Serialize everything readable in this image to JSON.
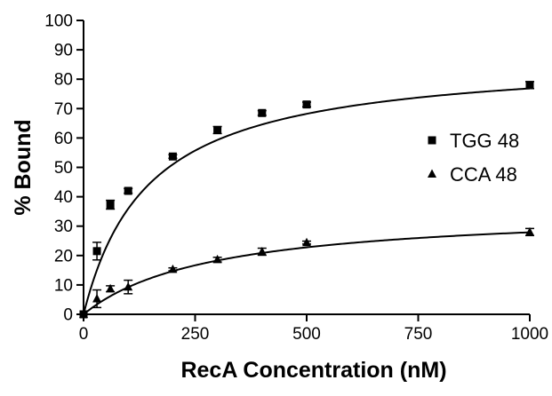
{
  "chart_data": {
    "type": "scatter",
    "title": "",
    "xlabel": "RecA Concentration (nM)",
    "ylabel": "% Bound",
    "xlim": [
      0,
      1000
    ],
    "ylim": [
      0,
      100
    ],
    "xticks": [
      "0",
      "250",
      "500",
      "750",
      "1000"
    ],
    "yticks": [
      "0",
      "10",
      "20",
      "30",
      "40",
      "50",
      "60",
      "70",
      "80",
      "90",
      "100"
    ],
    "legend_position": "right",
    "grid": false,
    "series": [
      {
        "name": "TGG 48",
        "marker": "square",
        "x": [
          0,
          30,
          60,
          100,
          200,
          300,
          400,
          500,
          1000
        ],
        "y": [
          0,
          21.5,
          37.3,
          42,
          53.7,
          62.7,
          68.5,
          71.4,
          78
        ],
        "err": [
          0,
          3,
          1.5,
          0.8,
          0.6,
          1.2,
          0.8,
          0.8,
          1.2
        ],
        "fit": {
          "bmax": 88,
          "kd": 145
        }
      },
      {
        "name": "CCA 48",
        "marker": "triangle",
        "x": [
          0,
          30,
          60,
          100,
          200,
          300,
          400,
          500,
          1000
        ],
        "y": [
          0,
          5.3,
          8.7,
          9.3,
          15.3,
          18.6,
          21.3,
          24.4,
          28
        ],
        "err": [
          0,
          3,
          1,
          2.3,
          0.5,
          0.8,
          1.2,
          0.5,
          1.2
        ],
        "fit": {
          "bmax": 36,
          "kd": 290
        }
      }
    ]
  }
}
